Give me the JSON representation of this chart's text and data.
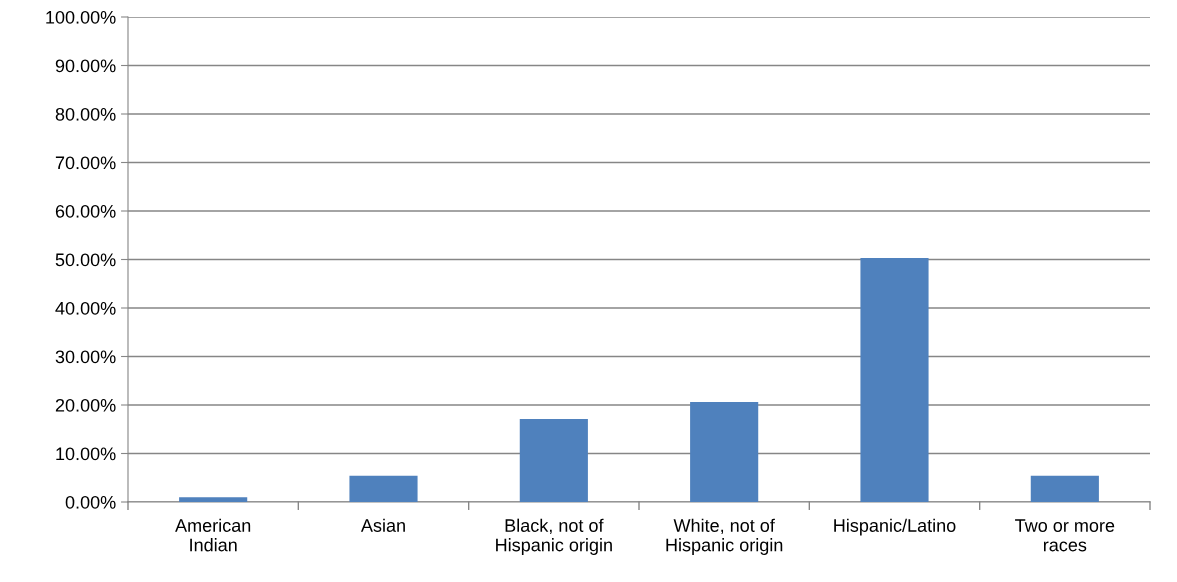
{
  "chart_data": {
    "type": "bar",
    "categories": [
      "American\nIndian",
      "Asian",
      "Black, not of\nHispanic origin",
      "White, not of\nHispanic origin",
      "Hispanic/Latino",
      "Two or more\nraces"
    ],
    "values": [
      1.0,
      5.4,
      17.1,
      20.6,
      50.3,
      5.4
    ],
    "color": "#4f81bd",
    "ylim": [
      0,
      100
    ],
    "yticks": [
      {
        "value": 0,
        "label": "0.00%"
      },
      {
        "value": 10,
        "label": "10.00%"
      },
      {
        "value": 20,
        "label": "20.00%"
      },
      {
        "value": 30,
        "label": "30.00%"
      },
      {
        "value": 40,
        "label": "40.00%"
      },
      {
        "value": 50,
        "label": "50.00%"
      },
      {
        "value": 60,
        "label": "60.00%"
      },
      {
        "value": 70,
        "label": "70.00%"
      },
      {
        "value": 80,
        "label": "80.00%"
      },
      {
        "value": 90,
        "label": "90.00%"
      },
      {
        "value": 100,
        "label": "100.00%"
      }
    ],
    "grid": "y",
    "legend": false
  }
}
